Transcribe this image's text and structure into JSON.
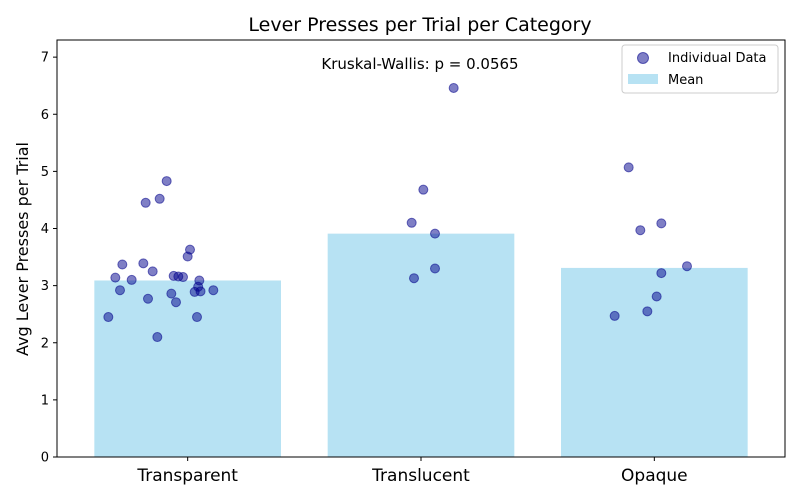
{
  "chart_data": {
    "type": "bar",
    "title": "Lever Presses per Trial per Category",
    "xlabel": "",
    "ylabel": "Avg Lever Presses per Trial",
    "categories": [
      "Transparent",
      "Translucent",
      "Opaque"
    ],
    "ylim": [
      0,
      7.3
    ],
    "yticks": [
      0,
      1,
      2,
      3,
      4,
      5,
      6,
      7
    ],
    "grid": false,
    "annotation": "Kruskal-Wallis: p = 0.0565",
    "legend": {
      "placement": "top-right",
      "entries": [
        "Individual Data",
        "Mean"
      ]
    },
    "series": [
      {
        "name": "Mean",
        "kind": "bar",
        "color": "#87ceeb",
        "values": [
          3.09,
          3.91,
          3.31
        ]
      },
      {
        "name": "Individual Data",
        "kind": "scatter",
        "color": "#00008b",
        "points": [
          {
            "category": "Transparent",
            "jitter": -0.34,
            "y": 2.45
          },
          {
            "category": "Transparent",
            "jitter": -0.31,
            "y": 3.14
          },
          {
            "category": "Transparent",
            "jitter": -0.29,
            "y": 2.92
          },
          {
            "category": "Transparent",
            "jitter": -0.28,
            "y": 3.37
          },
          {
            "category": "Transparent",
            "jitter": -0.24,
            "y": 3.1
          },
          {
            "category": "Transparent",
            "jitter": -0.19,
            "y": 3.39
          },
          {
            "category": "Transparent",
            "jitter": -0.18,
            "y": 4.45
          },
          {
            "category": "Transparent",
            "jitter": -0.17,
            "y": 2.77
          },
          {
            "category": "Transparent",
            "jitter": -0.15,
            "y": 3.25
          },
          {
            "category": "Transparent",
            "jitter": -0.13,
            "y": 2.1
          },
          {
            "category": "Transparent",
            "jitter": -0.12,
            "y": 4.52
          },
          {
            "category": "Transparent",
            "jitter": -0.09,
            "y": 4.83
          },
          {
            "category": "Transparent",
            "jitter": -0.07,
            "y": 2.86
          },
          {
            "category": "Transparent",
            "jitter": -0.06,
            "y": 3.17
          },
          {
            "category": "Transparent",
            "jitter": -0.05,
            "y": 2.71
          },
          {
            "category": "Transparent",
            "jitter": -0.04,
            "y": 3.16
          },
          {
            "category": "Transparent",
            "jitter": -0.02,
            "y": 3.15
          },
          {
            "category": "Transparent",
            "jitter": 0.0,
            "y": 3.51
          },
          {
            "category": "Transparent",
            "jitter": 0.01,
            "y": 3.63
          },
          {
            "category": "Transparent",
            "jitter": 0.03,
            "y": 2.89
          },
          {
            "category": "Transparent",
            "jitter": 0.04,
            "y": 2.45
          },
          {
            "category": "Transparent",
            "jitter": 0.045,
            "y": 2.98
          },
          {
            "category": "Transparent",
            "jitter": 0.05,
            "y": 3.09
          },
          {
            "category": "Transparent",
            "jitter": 0.055,
            "y": 2.9
          },
          {
            "category": "Transparent",
            "jitter": 0.11,
            "y": 2.92
          },
          {
            "category": "Translucent",
            "jitter": -0.04,
            "y": 4.1
          },
          {
            "category": "Translucent",
            "jitter": -0.03,
            "y": 3.13
          },
          {
            "category": "Translucent",
            "jitter": 0.01,
            "y": 4.68
          },
          {
            "category": "Translucent",
            "jitter": 0.06,
            "y": 3.91
          },
          {
            "category": "Translucent",
            "jitter": 0.06,
            "y": 3.3
          },
          {
            "category": "Translucent",
            "jitter": 0.14,
            "y": 6.46
          },
          {
            "category": "Opaque",
            "jitter": -0.17,
            "y": 2.47
          },
          {
            "category": "Opaque",
            "jitter": -0.11,
            "y": 5.07
          },
          {
            "category": "Opaque",
            "jitter": -0.06,
            "y": 3.97
          },
          {
            "category": "Opaque",
            "jitter": -0.03,
            "y": 2.55
          },
          {
            "category": "Opaque",
            "jitter": 0.01,
            "y": 2.81
          },
          {
            "category": "Opaque",
            "jitter": 0.03,
            "y": 4.09
          },
          {
            "category": "Opaque",
            "jitter": 0.03,
            "y": 3.22
          },
          {
            "category": "Opaque",
            "jitter": 0.14,
            "y": 3.34
          }
        ]
      }
    ]
  }
}
